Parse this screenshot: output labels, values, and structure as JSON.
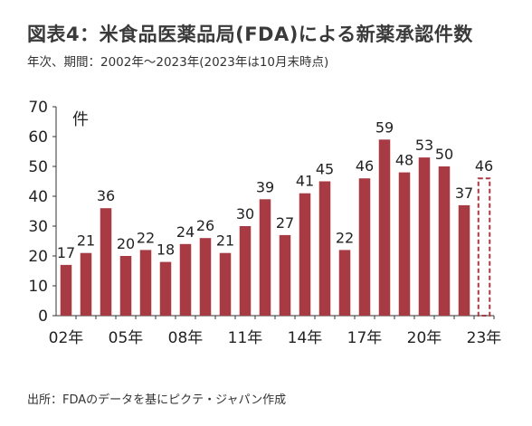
{
  "title": "図表4：米食品医薬品局(FDA)による新薬承認件数",
  "subtitle": "年次、期間：2002年～2023年(2023年は10月末時点)",
  "source": "出所：FDAのデータを基にピクテ・ジャパン作成",
  "colors": {
    "bar": "#a83a43",
    "dashed_bar_outline": "#a83a43",
    "axis": "#333333"
  },
  "chart_data": {
    "type": "bar",
    "title": "図表4：米食品医薬品局(FDA)による新薬承認件数",
    "unit_label": "件",
    "categories": [
      "2002",
      "2003",
      "2004",
      "2005",
      "2006",
      "2007",
      "2008",
      "2009",
      "2010",
      "2011",
      "2012",
      "2013",
      "2014",
      "2015",
      "2016",
      "2017",
      "2018",
      "2019",
      "2020",
      "2021",
      "2022",
      "2023"
    ],
    "values": [
      17,
      21,
      36,
      20,
      22,
      18,
      24,
      26,
      21,
      30,
      39,
      27,
      41,
      45,
      22,
      46,
      59,
      48,
      53,
      50,
      37,
      46
    ],
    "partial_year": "2023",
    "partial_style": "dashed outline",
    "x_tick_labels": [
      "02年",
      "05年",
      "08年",
      "11年",
      "14年",
      "17年",
      "20年",
      "23年"
    ],
    "x_tick_categories": [
      "2002",
      "2005",
      "2008",
      "2011",
      "2014",
      "2017",
      "2020",
      "2023"
    ],
    "y_ticks": [
      0,
      10,
      20,
      30,
      40,
      50,
      60,
      70
    ],
    "ylim": [
      0,
      70
    ],
    "data_labels": true,
    "legend": "none",
    "grid": false
  }
}
